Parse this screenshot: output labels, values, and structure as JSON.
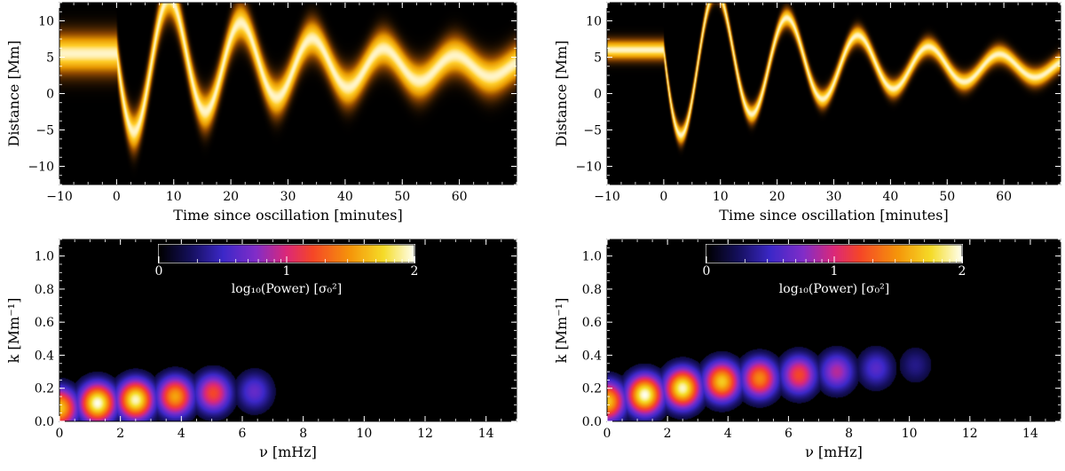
{
  "chart_data": [
    {
      "type": "heatmap",
      "panel": "top-left",
      "title": "",
      "xlabel": "Time since oscillation [minutes]",
      "ylabel": "Distance [Mm]",
      "xlim": [
        -10,
        70
      ],
      "ylim": [
        -12.5,
        12.5
      ],
      "xticks": [
        -10,
        0,
        10,
        20,
        30,
        40,
        50,
        60
      ],
      "yticks": [
        -10,
        -5,
        0,
        5,
        10
      ],
      "oscillation": {
        "start_time": 0,
        "period_min": 12.5,
        "amplitude_mm": 11.5,
        "damping_time_min": 30,
        "baseline_mm": 5.5,
        "final_offset_mm": 4.0,
        "settle_time_min": 25,
        "width_mm": 1.8
      }
    },
    {
      "type": "heatmap",
      "panel": "top-right",
      "title": "",
      "xlabel": "Time since oscillation [minutes]",
      "ylabel": "Distance [Mm]",
      "xlim": [
        -10,
        70
      ],
      "ylim": [
        -12.5,
        12.5
      ],
      "xticks": [
        -10,
        0,
        10,
        20,
        30,
        40,
        50,
        60
      ],
      "yticks": [
        -10,
        -5,
        0,
        5,
        10
      ],
      "oscillation": {
        "start_time": 0,
        "period_min": 12.5,
        "amplitude_mm": 12.5,
        "damping_time_min": 30,
        "baseline_mm": 6.0,
        "final_offset_mm": 4.0,
        "settle_time_min": 25,
        "width_mm": 0.9
      }
    },
    {
      "type": "heatmap",
      "panel": "bottom-left",
      "title": "",
      "xlabel": "ν [mHz]",
      "ylabel": "k [Mm⁻¹]",
      "xlim": [
        0,
        15
      ],
      "ylim": [
        0,
        1.1
      ],
      "xticks": [
        0,
        2,
        4,
        6,
        8,
        10,
        12,
        14
      ],
      "yticks": [
        0.0,
        0.2,
        0.4,
        0.6,
        0.8,
        1.0
      ],
      "colorbar": {
        "label": "log₁₀(Power) [σ₀²]",
        "min": 0,
        "max": 2,
        "ticks": [
          0,
          1,
          2
        ],
        "placement": "top-center"
      },
      "blobs": [
        {
          "nu": 0.0,
          "k": 0.08,
          "log_power": 1.7
        },
        {
          "nu": 1.25,
          "k": 0.11,
          "log_power": 2.0
        },
        {
          "nu": 2.5,
          "k": 0.13,
          "log_power": 1.95
        },
        {
          "nu": 3.8,
          "k": 0.15,
          "log_power": 1.55
        },
        {
          "nu": 5.05,
          "k": 0.17,
          "log_power": 1.2
        },
        {
          "nu": 6.4,
          "k": 0.18,
          "log_power": 0.65
        }
      ]
    },
    {
      "type": "heatmap",
      "panel": "bottom-right",
      "title": "",
      "xlabel": "ν [mHz]",
      "ylabel": "k [Mm⁻¹]",
      "xlim": [
        0,
        15
      ],
      "ylim": [
        0,
        1.1
      ],
      "xticks": [
        0,
        2,
        4,
        6,
        8,
        10,
        12,
        14
      ],
      "yticks": [
        0.0,
        0.2,
        0.4,
        0.6,
        0.8,
        1.0
      ],
      "colorbar": {
        "label": "log₁₀(Power) [σ₀²]",
        "min": 0,
        "max": 2,
        "ticks": [
          0,
          1,
          2
        ],
        "placement": "top-center"
      },
      "blobs": [
        {
          "nu": 0.0,
          "k": 0.12,
          "log_power": 1.7
        },
        {
          "nu": 1.25,
          "k": 0.16,
          "log_power": 2.0
        },
        {
          "nu": 2.5,
          "k": 0.2,
          "log_power": 1.95
        },
        {
          "nu": 3.8,
          "k": 0.24,
          "log_power": 1.7
        },
        {
          "nu": 5.05,
          "k": 0.26,
          "log_power": 1.45
        },
        {
          "nu": 6.35,
          "k": 0.28,
          "log_power": 1.2
        },
        {
          "nu": 7.6,
          "k": 0.3,
          "log_power": 0.9
        },
        {
          "nu": 8.9,
          "k": 0.32,
          "log_power": 0.6
        },
        {
          "nu": 10.2,
          "k": 0.34,
          "log_power": 0.35
        }
      ]
    }
  ]
}
